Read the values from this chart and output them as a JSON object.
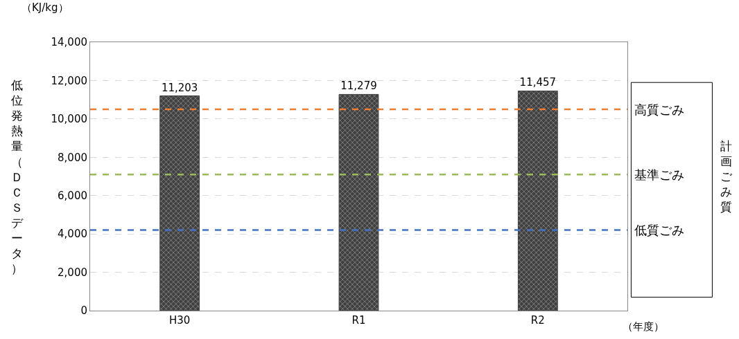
{
  "chart_data": {
    "type": "bar",
    "ylabel": "低位発熱量（ＤＣＳデータ）",
    "categories": [
      "H30",
      "R1",
      "R2"
    ],
    "values": [
      11203,
      11279,
      11457
    ],
    "color": "#404040",
    "value_labels": [
      "11,203",
      "11,279",
      "11,457"
    ],
    "ylim": [
      0,
      14000
    ],
    "yticks": [
      {
        "value": 0,
        "label": "0"
      },
      {
        "value": 2000,
        "label": "2,000"
      },
      {
        "value": 4000,
        "label": "4,000"
      },
      {
        "value": 6000,
        "label": "6,000"
      },
      {
        "value": 8000,
        "label": "8,000"
      },
      {
        "value": 10000,
        "label": "10,000"
      },
      {
        "value": 12000,
        "label": "12,000"
      },
      {
        "value": 14000,
        "label": "14,000"
      }
    ],
    "grid": "y",
    "legend": false,
    "ref_lines": [
      {
        "axis": "y",
        "value": 10500,
        "label": "高質ごみ",
        "color": "#ed7d31",
        "line_style": "dashed"
      },
      {
        "axis": "y",
        "value": 7100,
        "label": "基準ごみ",
        "color": "#9bbb59",
        "line_style": "dashed"
      },
      {
        "axis": "y",
        "value": 4200,
        "label": "低質ごみ",
        "color": "#4472c4",
        "line_style": "dashed"
      }
    ],
    "annotations": [
      "（KJ/kg）",
      "（年度）",
      "計画ごみ質"
    ]
  }
}
